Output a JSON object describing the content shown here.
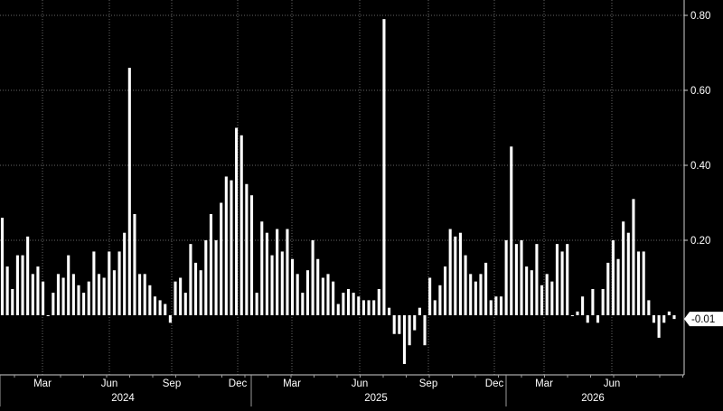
{
  "chart_data": {
    "type": "bar",
    "title": "",
    "xlabel": "",
    "ylabel": "",
    "ylim": [
      -0.13,
      0.82
    ],
    "yticks": [
      0.8,
      0.6,
      0.4,
      0.2
    ],
    "ytick_labels": [
      "0.80",
      "0.60",
      "0.40",
      "0.20"
    ],
    "last_value": -0.01,
    "last_value_label": "-0.01",
    "grid": true,
    "legend": "none",
    "x_month_labels": [
      "Mar",
      "Jun",
      "Sep",
      "Dec",
      "Mar",
      "Jun",
      "Sep",
      "Dec",
      "Mar",
      "Jun"
    ],
    "x_year_labels": [
      "2024",
      "2025",
      "2026"
    ],
    "colors": {
      "background": "#000000",
      "bar": "#ffffff",
      "grid": "#666666",
      "text": "#ffffff"
    },
    "values": [
      0.26,
      0.13,
      0.07,
      0.16,
      0.16,
      0.21,
      0.11,
      0.13,
      0.09,
      0.0,
      0.06,
      0.11,
      0.1,
      0.16,
      0.11,
      0.08,
      0.06,
      0.09,
      0.17,
      0.11,
      0.1,
      0.17,
      0.12,
      0.17,
      0.22,
      0.66,
      0.27,
      0.11,
      0.11,
      0.08,
      0.05,
      0.04,
      0.03,
      -0.02,
      0.09,
      0.1,
      0.06,
      0.19,
      0.14,
      0.12,
      0.2,
      0.27,
      0.2,
      0.3,
      0.37,
      0.36,
      0.5,
      0.48,
      0.35,
      0.32,
      0.06,
      0.25,
      0.22,
      0.16,
      0.23,
      0.17,
      0.23,
      0.15,
      0.11,
      0.06,
      0.12,
      0.2,
      0.15,
      0.1,
      0.11,
      0.09,
      0.03,
      0.06,
      0.07,
      0.06,
      0.05,
      0.04,
      0.04,
      0.04,
      0.07,
      0.79,
      0.02,
      -0.05,
      -0.05,
      -0.13,
      -0.08,
      -0.04,
      0.02,
      -0.08,
      0.1,
      0.04,
      0.08,
      0.13,
      0.23,
      0.21,
      0.22,
      0.16,
      0.11,
      0.09,
      0.11,
      0.14,
      0.04,
      0.05,
      0.05,
      0.2,
      0.45,
      0.19,
      0.2,
      0.13,
      0.12,
      0.19,
      0.08,
      0.11,
      0.09,
      0.19,
      0.17,
      0.19,
      0.0,
      0.01,
      0.05,
      -0.02,
      0.07,
      -0.02,
      0.07,
      0.14,
      0.2,
      0.15,
      0.25,
      0.22,
      0.31,
      0.17,
      0.17,
      0.04,
      -0.02,
      -0.06,
      -0.02,
      0.01,
      -0.01
    ]
  }
}
